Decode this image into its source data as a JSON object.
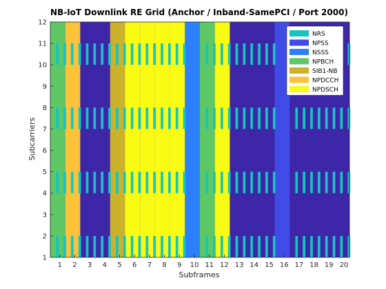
{
  "chart_data": {
    "type": "heatmap",
    "title": "NB-IoT Downlink RE Grid (Anchor / Inband-SamePCI / Port 2000)",
    "xlabel": "Subframes",
    "ylabel": "Subcarriers",
    "xlim": [
      0,
      20
    ],
    "ylim": [
      1,
      12
    ],
    "xticks": [
      1,
      2,
      3,
      4,
      5,
      6,
      7,
      8,
      9,
      10,
      11,
      12,
      13,
      14,
      15,
      16,
      17,
      18,
      19,
      20
    ],
    "yticks": [
      1,
      2,
      3,
      4,
      5,
      6,
      7,
      8,
      9,
      10,
      11,
      12
    ],
    "background_color": "#3e26a8",
    "legend_position": "top-right",
    "legend": [
      {
        "name": "NRS",
        "color": "#16c5c1"
      },
      {
        "name": "NPSS",
        "color": "#414ce8"
      },
      {
        "name": "NSSS",
        "color": "#2c80ff"
      },
      {
        "name": "NPBCH",
        "color": "#5dc865"
      },
      {
        "name": "SIB1-NB",
        "color": "#cbb12c"
      },
      {
        "name": "NPDCCH",
        "color": "#fcc23a"
      },
      {
        "name": "NPDSCH",
        "color": "#f9fb14"
      }
    ],
    "channel_by_subframe": [
      "NPBCH",
      "NPDCCH",
      "none",
      "none",
      "SIB1-NB",
      "NPDSCH",
      "NPDSCH",
      "NPDSCH",
      "NPDSCH",
      "NSSS",
      "NPBCH",
      "NPDSCH",
      "none",
      "none",
      "none",
      "NPSS",
      "none",
      "none",
      "none",
      "none"
    ],
    "nrs_subcarrier_bands": [
      [
        1,
        2
      ],
      [
        4,
        5
      ],
      [
        7,
        8
      ],
      [
        10,
        11
      ]
    ],
    "nrs_symbol_offsets": [
      0.38,
      0.45,
      0.88,
      0.95
    ]
  }
}
